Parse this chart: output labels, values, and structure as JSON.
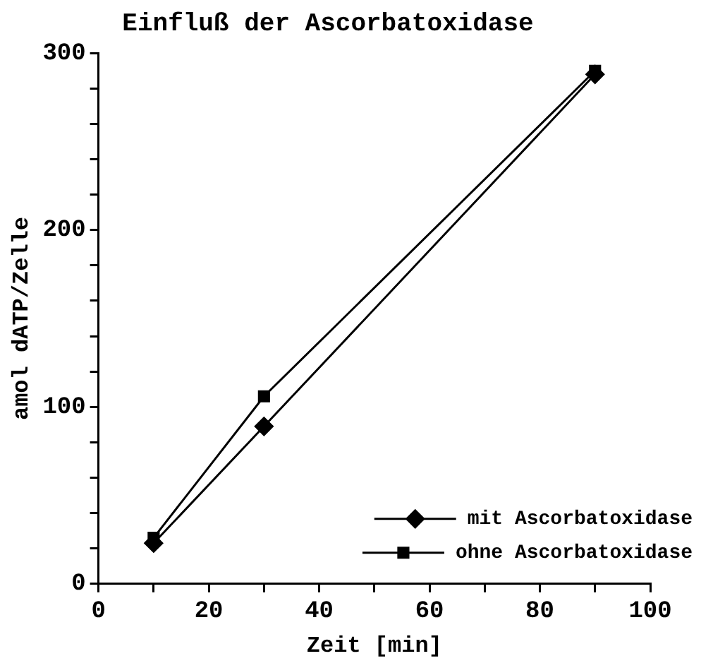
{
  "chart_data": {
    "type": "line",
    "title": "Einfluß der Ascorbatoxidase",
    "xlabel": "Zeit [min]",
    "ylabel": "amol dATP/Zelle",
    "xlim": [
      0,
      100
    ],
    "xticks": [
      0,
      {
        "value": 10,
        "label": null
      },
      20,
      {
        "value": 30,
        "label": null
      },
      40,
      {
        "value": 50,
        "label": null
      },
      60,
      {
        "value": 70,
        "label": null
      },
      80,
      {
        "value": 90,
        "label": null
      },
      100
    ],
    "ylim": [
      0,
      300
    ],
    "yticks": [
      0,
      {
        "value": 20,
        "label": null
      },
      {
        "value": 40,
        "label": null
      },
      {
        "value": 60,
        "label": null
      },
      {
        "value": 80,
        "label": null
      },
      100,
      {
        "value": 120,
        "label": null
      },
      {
        "value": 140,
        "label": null
      },
      {
        "value": 160,
        "label": null
      },
      {
        "value": 180,
        "label": null
      },
      200,
      {
        "value": 220,
        "label": null
      },
      {
        "value": 240,
        "label": null
      },
      {
        "value": 260,
        "label": null
      },
      {
        "value": 280,
        "label": null
      },
      300
    ],
    "grid": false,
    "legend": "bottom right",
    "line_style": "solid",
    "series": [
      {
        "name": "mit Ascorbatoxidase",
        "color": "#000000",
        "marker": "diamond",
        "x": [
          10,
          30,
          90
        ],
        "values": [
          23,
          89,
          288
        ]
      },
      {
        "name": "ohne Ascorbatoxidase",
        "color": "#000000",
        "marker": "square",
        "x": [
          10,
          30,
          90
        ],
        "values": [
          26,
          106,
          290
        ]
      }
    ]
  }
}
